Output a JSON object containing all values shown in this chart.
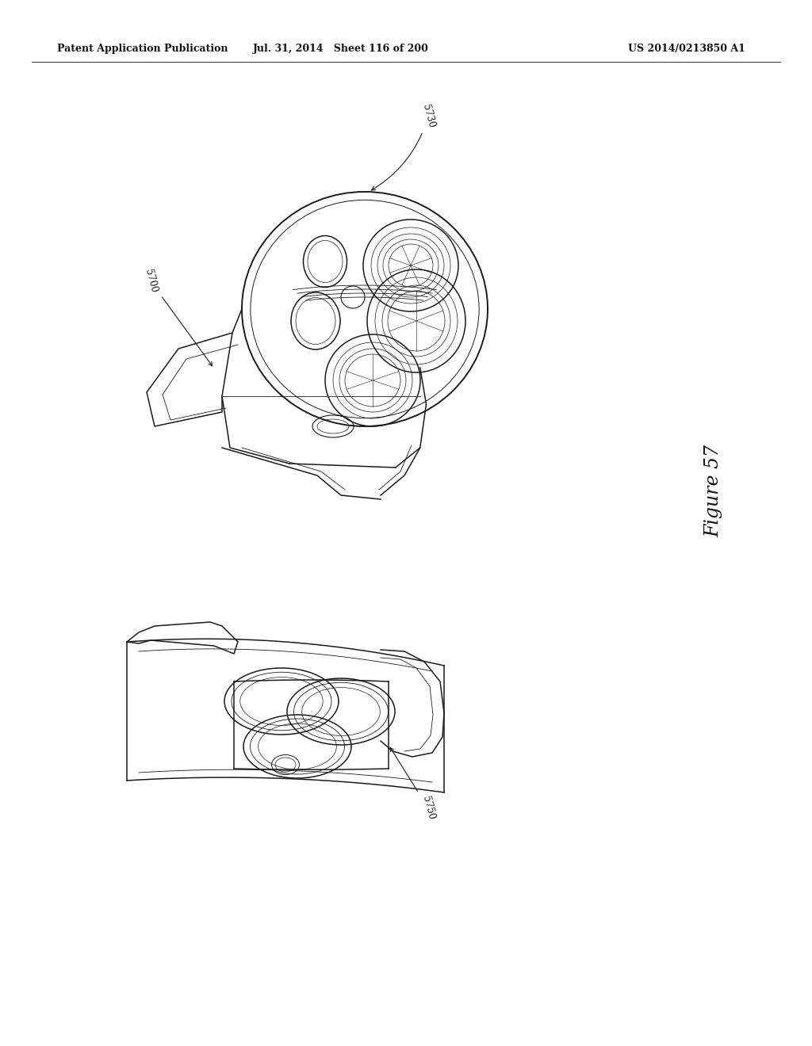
{
  "background_color": "#ffffff",
  "header_left": "Patent Application Publication",
  "header_mid": "Jul. 31, 2014   Sheet 116 of 200",
  "header_right": "US 2014/0213850 A1",
  "figure_label": "Figure 57",
  "label_fontsize": 8.5,
  "header_fontsize": 9,
  "figure_label_fontsize": 17
}
